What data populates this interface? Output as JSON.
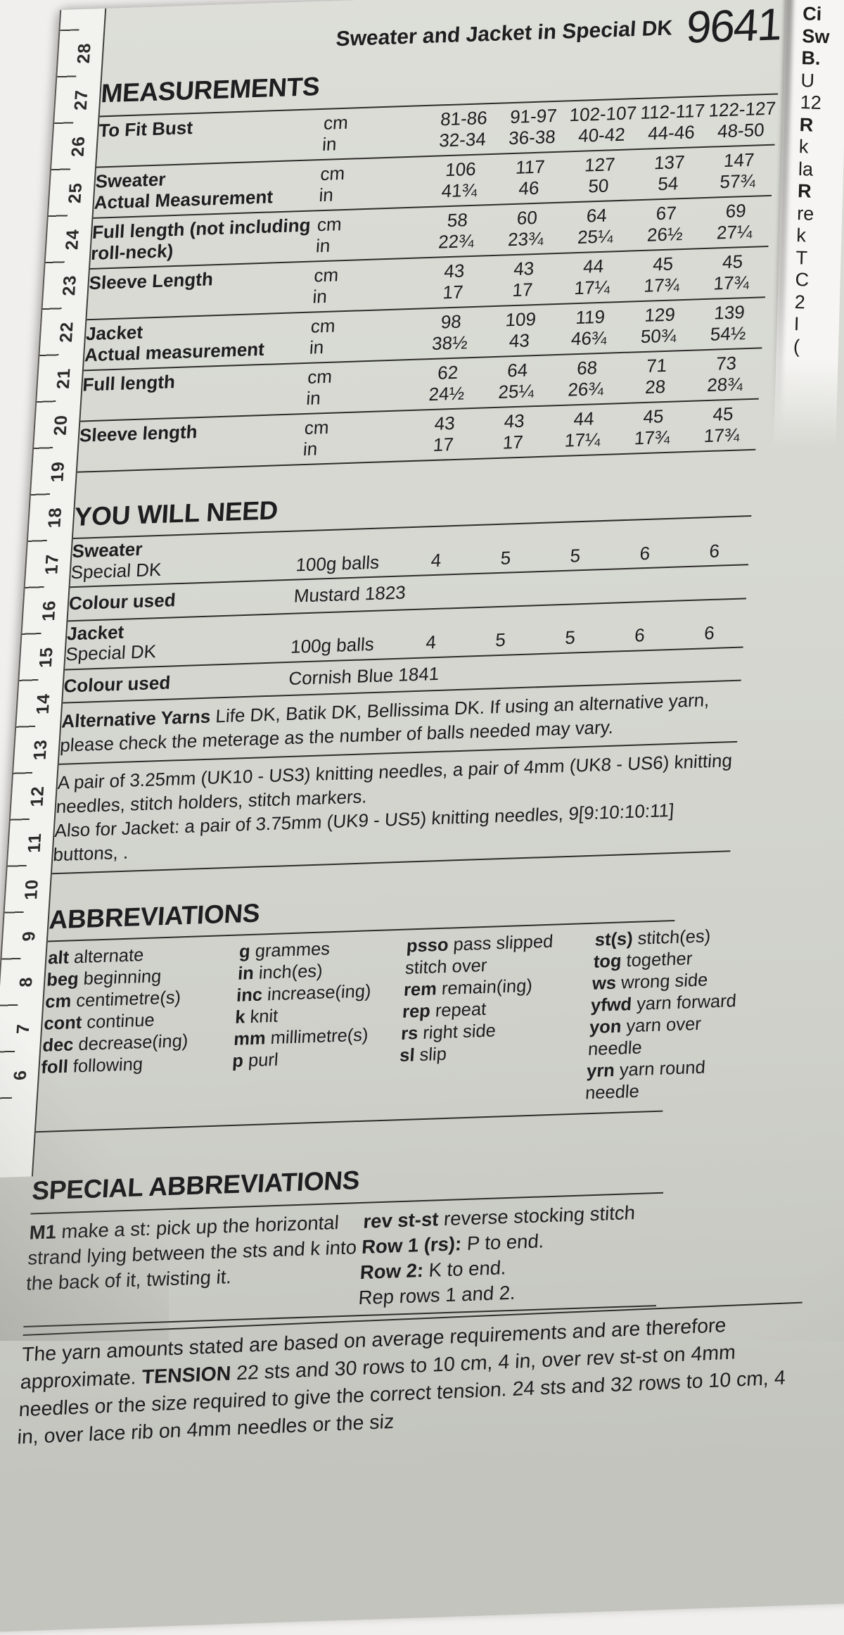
{
  "colors": {
    "paper": "#d6d7d1",
    "backdrop": "#f0efed",
    "ink": "#1e1e20",
    "rule": "#2e2d2b",
    "ruler_strip": "#f2f2ef"
  },
  "page": {
    "title": "Sweater and Jacket in Special DK",
    "number": "9641"
  },
  "measurements": {
    "heading": "MEASUREMENTS",
    "unit_cm": "cm",
    "unit_in": "in",
    "rows": [
      {
        "label": "To Fit Bust",
        "label2": "",
        "cm": [
          "81-86",
          "91-97",
          "102-107",
          "112-117",
          "122-127"
        ],
        "in": [
          "32-34",
          "36-38",
          "40-42",
          "44-46",
          "48-50"
        ]
      },
      {
        "label": "Sweater",
        "label2": "Actual Measurement",
        "cm": [
          "106",
          "117",
          "127",
          "137",
          "147"
        ],
        "in": [
          "41¾",
          "46",
          "50",
          "54",
          "57¾"
        ]
      },
      {
        "label": "Full length (not including",
        "label2": "roll-neck)",
        "cm": [
          "58",
          "60",
          "64",
          "67",
          "69"
        ],
        "in": [
          "22¾",
          "23¾",
          "25¼",
          "26½",
          "27¼"
        ]
      },
      {
        "label": "Sleeve Length",
        "label2": "",
        "cm": [
          "43",
          "43",
          "44",
          "45",
          "45"
        ],
        "in": [
          "17",
          "17",
          "17¼",
          "17¾",
          "17¾"
        ]
      },
      {
        "label": "Jacket",
        "label2": "Actual measurement",
        "cm": [
          "98",
          "109",
          "119",
          "129",
          "139"
        ],
        "in": [
          "38½",
          "43",
          "46¾",
          "50¾",
          "54½"
        ]
      },
      {
        "label": "Full length",
        "label2": "",
        "cm": [
          "62",
          "64",
          "68",
          "71",
          "73"
        ],
        "in": [
          "24½",
          "25¼",
          "26¾",
          "28",
          "28¾"
        ]
      },
      {
        "label": "Sleeve length",
        "label2": "",
        "cm": [
          "43",
          "43",
          "44",
          "45",
          "45"
        ],
        "in": [
          "17",
          "17",
          "17¼",
          "17¾",
          "17¾"
        ]
      }
    ]
  },
  "you_will_need": {
    "heading": "YOU WILL NEED",
    "sweater_label": "Sweater",
    "jacket_label": "Jacket",
    "yarn_name": "Special DK",
    "unit": "100g balls",
    "sweater_balls": [
      "4",
      "5",
      "5",
      "6",
      "6"
    ],
    "jacket_balls": [
      "4",
      "5",
      "5",
      "6",
      "6"
    ],
    "colour_label": "Colour used",
    "sweater_colour": "Mustard 1823",
    "jacket_colour": "Cornish Blue 1841",
    "alt_lead": "Alternative Yarns",
    "alt_text": " Life DK, Batik DK, Bellissima DK.  If using an alternative yarn, please check the meterage as the number of balls needed may vary.",
    "needles_text": "A pair of 3.25mm (UK10 - US3) knitting needles, a pair of 4mm (UK8 - US6) knitting needles, stitch holders, stitch markers.",
    "jacket_needles_text": "Also for Jacket: a pair of 3.75mm (UK9 - US5) knitting needles, 9[9:10:10:11] buttons, ."
  },
  "abbreviations": {
    "heading": "ABBREVIATIONS",
    "columns": [
      [
        {
          "abbr": "alt",
          "def": "alternate"
        },
        {
          "abbr": "beg",
          "def": "beginning"
        },
        {
          "abbr": "cm",
          "def": "centimetre(s)"
        },
        {
          "abbr": "cont",
          "def": "continue"
        },
        {
          "abbr": "dec",
          "def": "decrease(ing)"
        },
        {
          "abbr": "foll",
          "def": "following"
        }
      ],
      [
        {
          "abbr": "g",
          "def": "grammes"
        },
        {
          "abbr": "in",
          "def": "inch(es)"
        },
        {
          "abbr": "inc",
          "def": "increase(ing)"
        },
        {
          "abbr": "k",
          "def": "knit"
        },
        {
          "abbr": "mm",
          "def": "millimetre(s)"
        },
        {
          "abbr": "p",
          "def": "purl"
        }
      ],
      [
        {
          "abbr": "psso",
          "def": "pass slipped stitch over"
        },
        {
          "abbr": "rem",
          "def": "remain(ing)"
        },
        {
          "abbr": "rep",
          "def": "repeat"
        },
        {
          "abbr": "rs",
          "def": "right side"
        },
        {
          "abbr": "sl",
          "def": "slip"
        }
      ],
      [
        {
          "abbr": "st(s)",
          "def": "stitch(es)"
        },
        {
          "abbr": "tog",
          "def": "together"
        },
        {
          "abbr": "ws",
          "def": "wrong side"
        },
        {
          "abbr": "yfwd",
          "def": "yarn forward"
        },
        {
          "abbr": "yon",
          "def": "yarn over needle"
        },
        {
          "abbr": "yrn",
          "def": "yarn round needle"
        }
      ]
    ]
  },
  "special_abbreviations": {
    "heading": "SPECIAL ABBREVIATIONS",
    "m1_abbr": "M1",
    "m1_text": " make a st: pick up the horizontal strand lying between the sts and k into the back of it, twisting it.",
    "rev_abbr": "rev st-st",
    "rev_text": " reverse stocking stitch",
    "row1_lead": "Row 1 (rs):",
    "row1_text": " P to end.",
    "row2_lead": "Row 2:",
    "row2_text": " K to end.",
    "rep_text": "Rep rows 1 and 2."
  },
  "tension_note": {
    "pre": "The yarn amounts stated are based on average requirements and are therefore approximate. ",
    "bold": "TENSION",
    "post": " 22 sts and 30 rows to 10 cm, 4 in, over rev st-st on 4mm needles or the size required to give the correct tension. 24 sts and 32 rows to 10 cm, 4 in, over lace rib on 4mm needles or the siz"
  },
  "ruler": {
    "numbers": [
      "28",
      "27",
      "26",
      "25",
      "24",
      "23",
      "22",
      "21",
      "20",
      "19",
      "18",
      "17",
      "16",
      "15",
      "14",
      "13",
      "12",
      "11",
      "10",
      "9",
      "8",
      "7",
      "6"
    ]
  },
  "right_edge": {
    "fragments": [
      "Ci",
      "Sw",
      "B.",
      "U",
      "12",
      "R",
      "k",
      "la",
      "R",
      "re",
      "k",
      "T",
      "C",
      "2",
      "I",
      "("
    ]
  }
}
